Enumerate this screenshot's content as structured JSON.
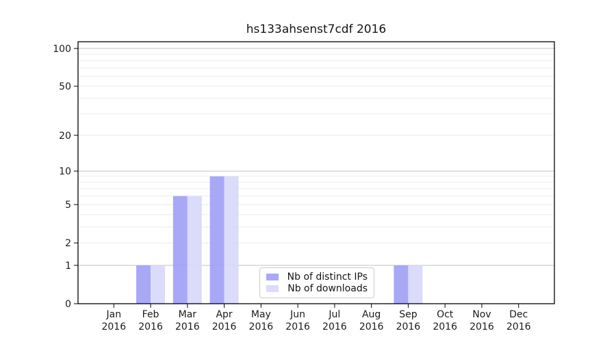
{
  "chart_data": {
    "type": "bar",
    "title": "hs133ahsenst7cdf 2016",
    "x_categories": [
      "Jan",
      "Feb",
      "Mar",
      "Apr",
      "May",
      "Jun",
      "Jul",
      "Aug",
      "Sep",
      "Oct",
      "Nov",
      "Dec"
    ],
    "x_sublabel": "2016",
    "series": [
      {
        "name": "Nb of distinct IPs",
        "color": "#9c9cf6",
        "values": [
          0,
          1,
          6,
          9,
          0,
          0,
          0,
          0,
          1,
          0,
          0,
          0
        ]
      },
      {
        "name": "Nb of downloads",
        "color": "#d6d6fb",
        "values": [
          0,
          1,
          6,
          9,
          0,
          0,
          0,
          0,
          1,
          0,
          0,
          0
        ]
      }
    ],
    "y_scale": "log10(1+x)",
    "ylim": [
      0,
      113
    ],
    "y_ticks": [
      0,
      1,
      2,
      5,
      10,
      20,
      50,
      100
    ],
    "y_gridlines_major": [
      1,
      10,
      100
    ],
    "y_gridlines_minor": [
      2,
      3,
      4,
      5,
      6,
      7,
      8,
      9,
      20,
      30,
      40,
      50,
      60,
      70,
      80,
      90
    ],
    "grid": true,
    "legend_position": "lower-center-inside",
    "xlabel": "",
    "ylabel": ""
  },
  "colors": {
    "axis": "#000000",
    "grid_major": "#c0c0c0",
    "grid_minor": "#ececec",
    "text": "#1a1a1a",
    "legend_border": "#cccccc"
  }
}
